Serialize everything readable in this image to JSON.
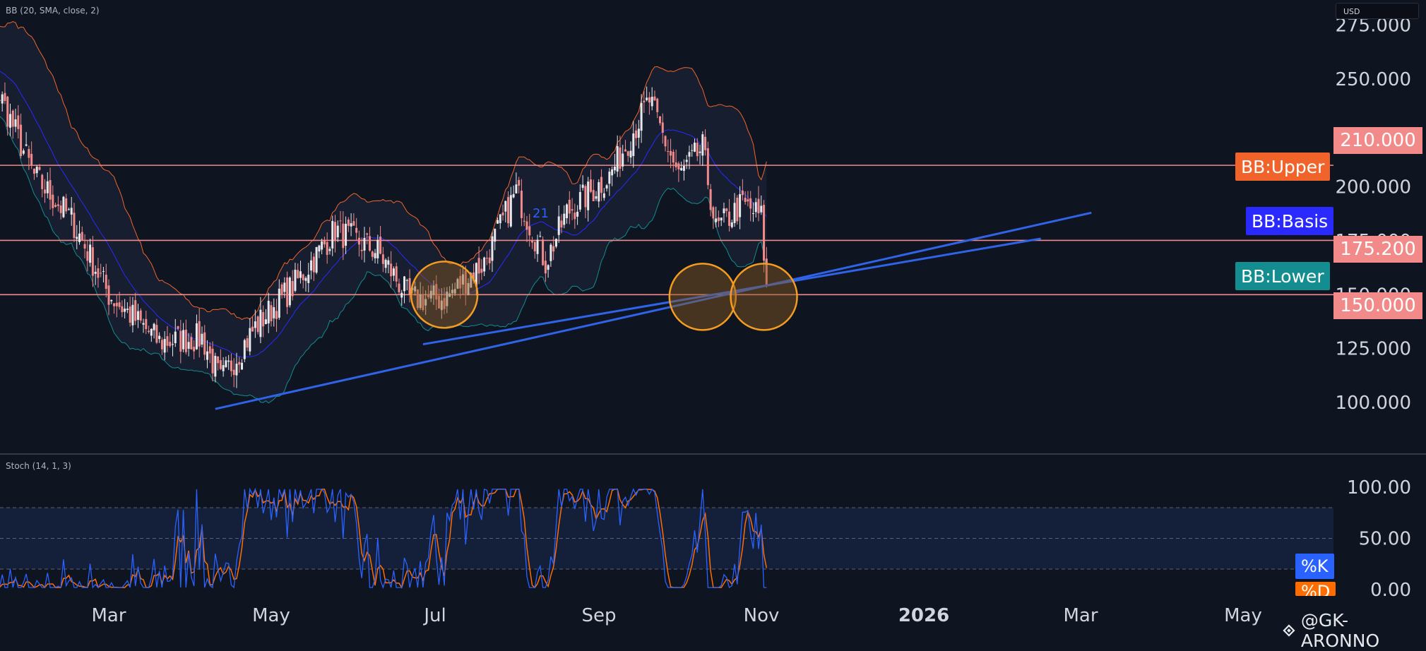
{
  "indicators": {
    "bb_label": "BB (20, SMA, close, 2)",
    "stoch_label": "Stoch (14, 1, 3)"
  },
  "currency": "USD",
  "legend": {
    "upper": {
      "label": "BB:Upper",
      "color": "#f0642b"
    },
    "basis": {
      "label": "BB:Basis",
      "color": "#2a2aff"
    },
    "lower": {
      "label": "BB:Lower",
      "color": "#138d8f"
    },
    "k": {
      "label": "%K",
      "color": "#2962ff"
    },
    "d": {
      "label": "%D",
      "color": "#ff6d00"
    }
  },
  "price_tags": [
    {
      "label": "210.000"
    },
    {
      "label": "175.200"
    },
    {
      "label": "150.000"
    }
  ],
  "annotation": "21",
  "watermark": "@GK-ARONNO",
  "chart_data": [
    {
      "type": "candlestick",
      "title": "",
      "price_axis": {
        "ticks": [
          "275.000",
          "250.000",
          "200.000",
          "175.000",
          "150.000",
          "125.000",
          "100.000"
        ],
        "range": [
          89,
          278
        ]
      },
      "time_axis": [
        "Mar",
        "May",
        "Jul",
        "Sep",
        "Nov",
        "2026",
        "Mar",
        "May"
      ],
      "horizontal_levels": [
        210,
        175.2,
        150
      ],
      "trendlines": [
        {
          "from": [
            "2025-04-10",
            97
          ],
          "to": [
            "2026-03-05",
            188
          ]
        },
        {
          "from": [
            "2025-06-27",
            127
          ],
          "to": [
            "2026-02-14",
            176
          ]
        }
      ],
      "highlight_circles": [
        {
          "date": "2025-07-05",
          "price": 150
        },
        {
          "date": "2025-10-10",
          "price": 149
        },
        {
          "date": "2025-11-02",
          "price": 149
        }
      ],
      "approx_close_path": [
        {
          "x": "2025-01-05",
          "y": 265
        },
        {
          "x": "2025-01-20",
          "y": 240
        },
        {
          "x": "2025-02-01",
          "y": 205
        },
        {
          "x": "2025-02-15",
          "y": 185
        },
        {
          "x": "2025-03-01",
          "y": 150
        },
        {
          "x": "2025-03-20",
          "y": 128
        },
        {
          "x": "2025-04-05",
          "y": 130
        },
        {
          "x": "2025-04-12",
          "y": 110
        },
        {
          "x": "2025-04-25",
          "y": 135
        },
        {
          "x": "2025-05-10",
          "y": 155
        },
        {
          "x": "2025-05-25",
          "y": 180
        },
        {
          "x": "2025-06-10",
          "y": 170
        },
        {
          "x": "2025-06-22",
          "y": 148
        },
        {
          "x": "2025-07-05",
          "y": 148
        },
        {
          "x": "2025-07-20",
          "y": 165
        },
        {
          "x": "2025-08-01",
          "y": 198
        },
        {
          "x": "2025-08-12",
          "y": 165
        },
        {
          "x": "2025-08-20",
          "y": 188
        },
        {
          "x": "2025-09-05",
          "y": 205
        },
        {
          "x": "2025-09-20",
          "y": 240
        },
        {
          "x": "2025-10-01",
          "y": 205
        },
        {
          "x": "2025-10-10",
          "y": 218
        },
        {
          "x": "2025-10-15",
          "y": 180
        },
        {
          "x": "2025-10-25",
          "y": 192
        },
        {
          "x": "2025-11-01",
          "y": 186
        },
        {
          "x": "2025-11-03",
          "y": 152
        }
      ]
    },
    {
      "type": "line",
      "title": "",
      "y_axis": {
        "ticks": [
          "100.00",
          "50.00",
          "0.00"
        ],
        "range": [
          0,
          100
        ]
      },
      "bands": [
        80,
        50,
        20
      ],
      "series": [
        {
          "name": "%K",
          "color": "#2962ff"
        },
        {
          "name": "%D",
          "color": "#ff6d00"
        }
      ]
    }
  ]
}
